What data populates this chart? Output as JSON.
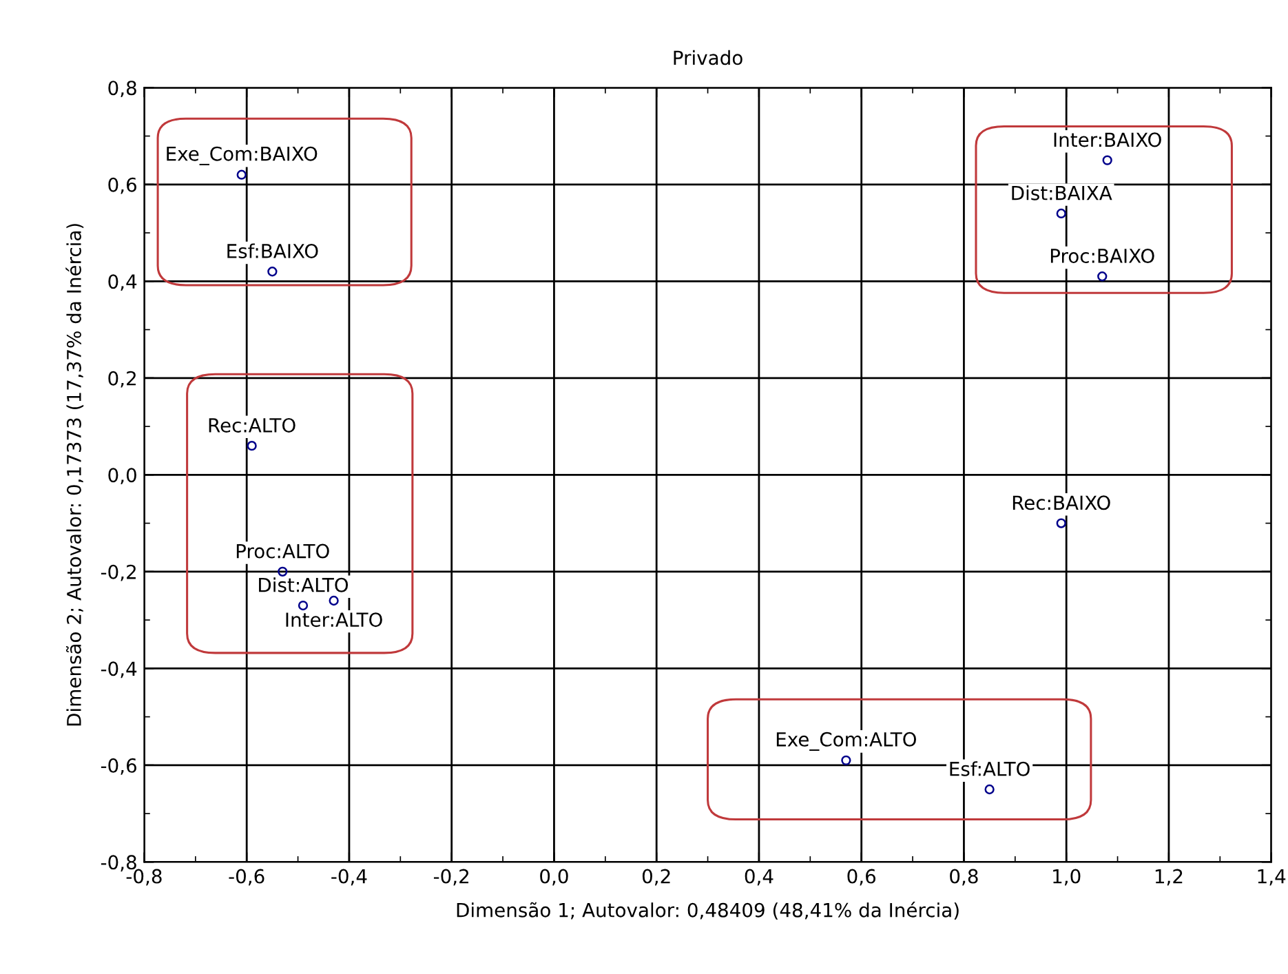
{
  "chart_data": {
    "type": "scatter",
    "title": "Privado",
    "xlabel": "Dimensão 1; Autovalor: 0,48409 (48,41% da Inércia)",
    "ylabel": "Dimensão 2; Autovalor: 0,17373 (17,37% da Inércia)",
    "series": [
      {
        "color": "#00008b",
        "x": [
          -0.61,
          -0.55,
          1.08,
          0.99,
          1.07,
          -0.59,
          0.99,
          -0.53,
          -0.49,
          -0.43,
          0.57,
          0.85
        ],
        "values": [
          0.62,
          0.42,
          0.65,
          0.54,
          0.41,
          0.06,
          -0.1,
          -0.2,
          -0.27,
          -0.26,
          -0.59,
          -0.65
        ]
      }
    ],
    "annotations": [
      {
        "text": "Exe_Com:BAIXO",
        "x": -0.61,
        "y": 0.62
      },
      {
        "text": "Esf:BAIXO",
        "x": -0.55,
        "y": 0.42
      },
      {
        "text": "Inter:BAIXO",
        "x": 1.08,
        "y": 0.65
      },
      {
        "text": "Dist:BAIXA",
        "x": 0.99,
        "y": 0.54
      },
      {
        "text": "Proc:BAIXO",
        "x": 1.07,
        "y": 0.41
      },
      {
        "text": "Rec:ALTO",
        "x": -0.59,
        "y": 0.06
      },
      {
        "text": "Rec:BAIXO",
        "x": 0.99,
        "y": -0.1
      },
      {
        "text": "Proc:ALTO",
        "x": -0.53,
        "y": -0.2
      },
      {
        "text": "Dist:ALTO",
        "x": -0.49,
        "y": -0.27
      },
      {
        "text": "Inter:ALTO",
        "x": -0.43,
        "y": -0.26
      },
      {
        "text": "Exe_Com:ALTO",
        "x": 0.57,
        "y": -0.59
      },
      {
        "text": "Esf:ALTO",
        "x": 0.85,
        "y": -0.65
      }
    ],
    "xlim": [
      -0.8,
      1.4
    ],
    "xticks": [
      {
        "value": -0.8,
        "label": "-0,8"
      },
      {
        "value": -0.6,
        "label": "-0,6"
      },
      {
        "value": -0.4,
        "label": "-0,4"
      },
      {
        "value": -0.2,
        "label": "-0,2"
      },
      {
        "value": 0,
        "label": "0,0"
      },
      {
        "value": 0.2,
        "label": "0,2"
      },
      {
        "value": 0.4,
        "label": "0,4"
      },
      {
        "value": 0.6,
        "label": "0,6"
      },
      {
        "value": 0.8,
        "label": "0,8"
      },
      {
        "value": 1.0,
        "label": "1,0"
      },
      {
        "value": 1.2,
        "label": "1,2"
      },
      {
        "value": 1.4,
        "label": "1,4"
      }
    ],
    "ylim": [
      -0.8,
      0.8
    ],
    "yticks": [
      {
        "value": -0.8,
        "label": "-0,8"
      },
      {
        "value": -0.6,
        "label": "-0,6"
      },
      {
        "value": -0.4,
        "label": "-0,4"
      },
      {
        "value": -0.2,
        "label": "-0,2"
      },
      {
        "value": 0,
        "label": "0,0"
      },
      {
        "value": 0.2,
        "label": "0,2"
      },
      {
        "value": 0.4,
        "label": "0,4"
      },
      {
        "value": 0.6,
        "label": "0,6"
      },
      {
        "value": 0.8,
        "label": "0,8"
      }
    ],
    "grid": true,
    "marker": "circle"
  }
}
